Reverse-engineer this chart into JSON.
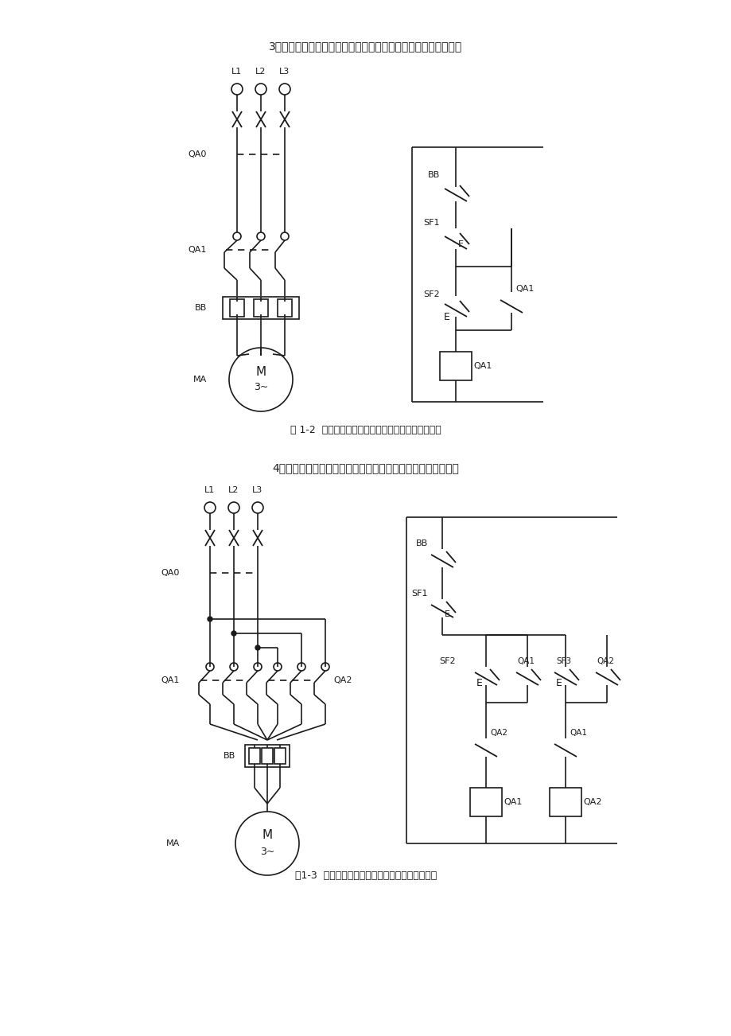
{
  "bg": "#ffffff",
  "lc": "#1a1a1a",
  "title1": "3．连接三相交流异步电动机的全压启动控制电路，并进行验证。",
  "title2": "4．连接三相交流异步电动机的正反转控制电路，并进行验证。",
  "cap1": "图 1-2  三相交流异步电动机全压启动控制电路原理图",
  "cap2": "图1-3  三相交流异步电动机正反转控制电路原理图"
}
